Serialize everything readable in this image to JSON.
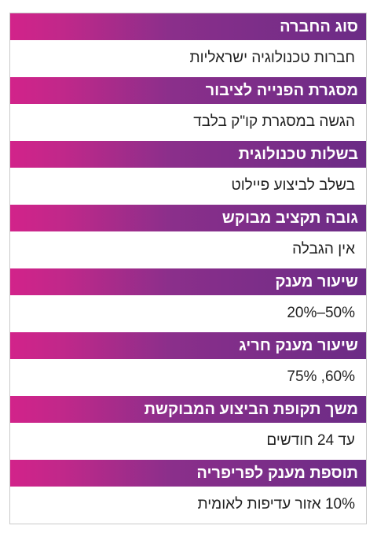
{
  "rows": [
    {
      "label": "סוג החברה",
      "value": "חברות טכנולוגיה ישראליות"
    },
    {
      "label": "מסגרת הפנייה לציבור",
      "value": "הגשה במסגרת קו\"ק בלבד"
    },
    {
      "label": "בשלות טכנולוגית",
      "value": "בשלב לביצוע פיילוט"
    },
    {
      "label": "גובה תקציב מבוקש",
      "value": "אין הגבלה"
    },
    {
      "label": "שיעור מענק",
      "value": "50%–20%"
    },
    {
      "label": "שיעור מענק חריג",
      "value": "60%, 75%"
    },
    {
      "label": "משך תקופת הביצוע המבוקשת",
      "value": "עד 24 חודשים"
    },
    {
      "label": "תוספת מענק לפריפריה",
      "value": "10% אזור עדיפות לאומית"
    }
  ],
  "colors": {
    "header_gradient_start": "#d2238a",
    "header_gradient_end": "#6b2c86",
    "header_text": "#ffffff",
    "value_text": "#222222",
    "border": "#c9c9c9"
  }
}
